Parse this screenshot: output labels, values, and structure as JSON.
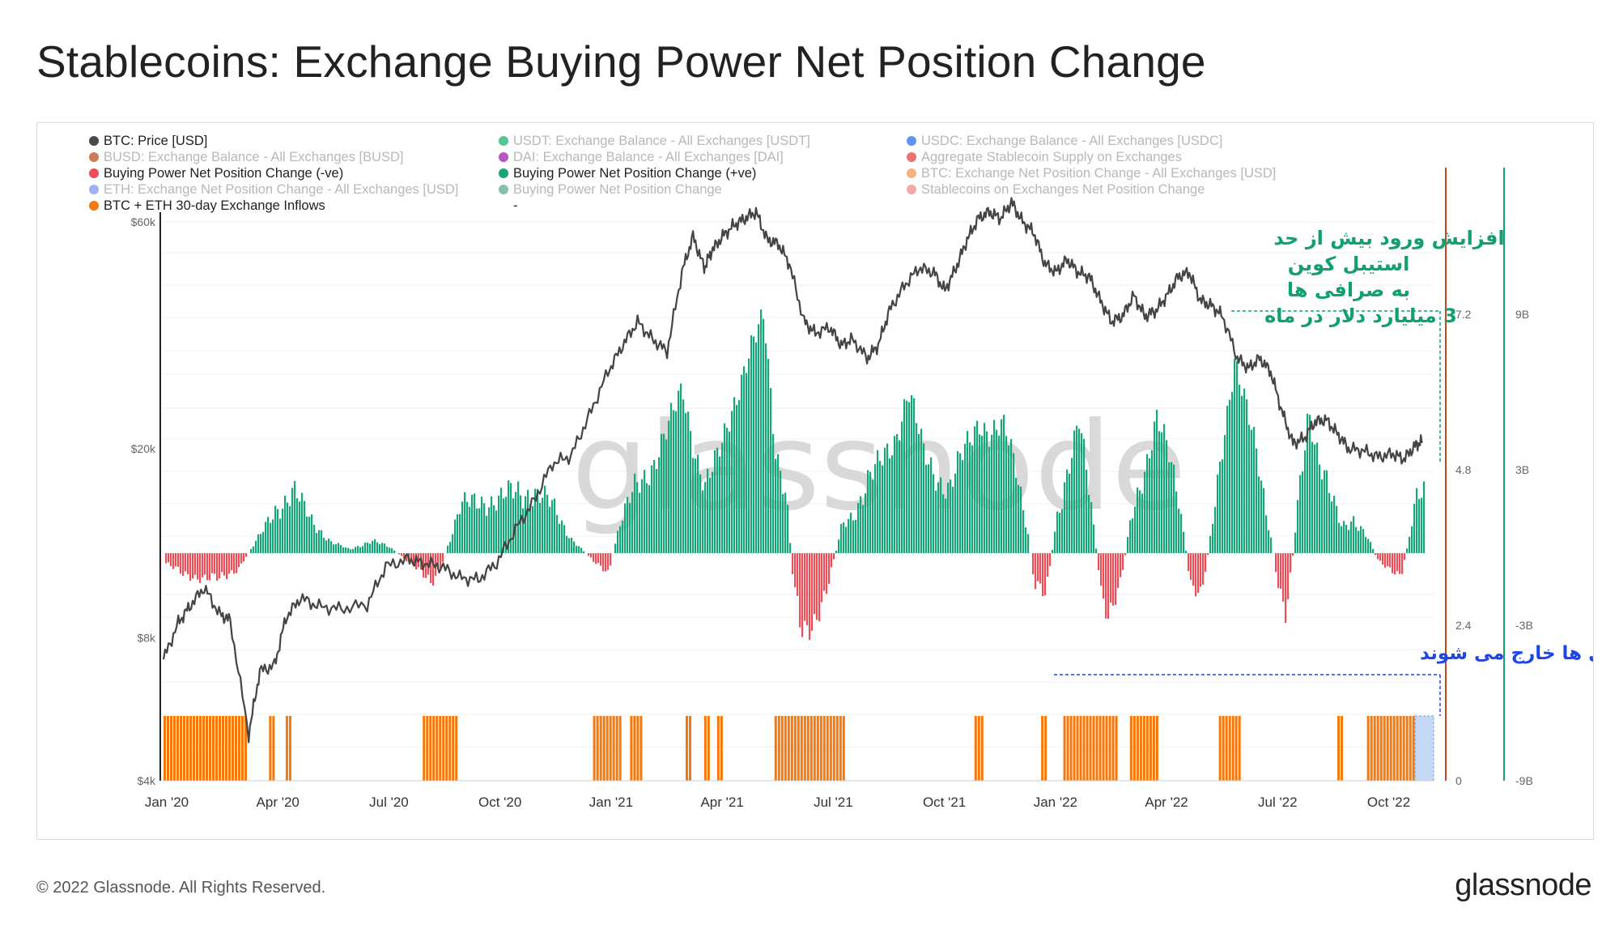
{
  "title": "Stablecoins: Exchange Buying Power Net Position Change",
  "footer": {
    "copyright": "© 2022 Glassnode. All Rights Reserved.",
    "brand": "glassnode"
  },
  "watermark": "glassnode",
  "colors": {
    "price_line": "#444444",
    "buying_negative": "#ec4d56",
    "buying_positive": "#16a679",
    "inflows": "#f4780d",
    "right_axis_red": "#c9431c",
    "right_axis_green": "#12a070",
    "annotation_green": "#12a070",
    "annotation_blue": "#1f45e6"
  },
  "legend": [
    {
      "label": "BTC: Price [USD]",
      "color": "#4a4a4a",
      "active": true
    },
    {
      "label": "USDT: Exchange Balance - All Exchanges [USDT]",
      "color": "#1fb36b",
      "active": false
    },
    {
      "label": "USDC: Exchange Balance - All Exchanges [USDC]",
      "color": "#2e6ef0",
      "active": false
    },
    {
      "label": "BUSD: Exchange Balance - All Exchanges [BUSD]",
      "color": "#b8501e",
      "active": false
    },
    {
      "label": "DAI: Exchange Balance - All Exchanges [DAI]",
      "color": "#a31ab8",
      "active": false
    },
    {
      "label": "Aggregate Stablecoin Supply on Exchanges",
      "color": "#e84040",
      "active": false
    },
    {
      "label": "Buying Power Net Position Change (-ve)",
      "color": "#ec4d56",
      "active": true
    },
    {
      "label": "Buying Power Net Position Change (+ve)",
      "color": "#16a679",
      "active": true
    },
    {
      "label": "BTC: Exchange Net Position Change - All Exchanges [USD]",
      "color": "#f39a5a",
      "active": false
    },
    {
      "label": "ETH: Exchange Net Position Change - All Exchanges [USD]",
      "color": "#7f97ee",
      "active": false
    },
    {
      "label": "Buying Power Net Position Change",
      "color": "#5fa98a",
      "active": false
    },
    {
      "label": "Stablecoins on Exchanges Net Position Change",
      "color": "#f08a8a",
      "active": false
    },
    {
      "label": "BTC + ETH 30-day Exchange Inflows",
      "color": "#f4780d",
      "active": true
    },
    {
      "label": "-",
      "color": null,
      "active": true
    }
  ],
  "chart_data": {
    "type": "line+bar",
    "title": "Stablecoins: Exchange Buying Power Net Position Change",
    "x_ticks": [
      "Jan '20",
      "Apr '20",
      "Jul '20",
      "Oct '20",
      "Jan '21",
      "Apr '21",
      "Jul '21",
      "Oct '21",
      "Jan '22",
      "Apr '22",
      "Jul '22",
      "Oct '22"
    ],
    "left_axis": {
      "ticks": [
        "$60k",
        "$20k",
        "$8k",
        "$4k"
      ],
      "values": [
        60000,
        20000,
        8000,
        4000
      ],
      "scale": "log"
    },
    "right_axis_1": {
      "ticks": [
        "7.2",
        "4.8",
        "2.4",
        "0"
      ],
      "values": [
        7.2,
        4.8,
        2.4,
        0
      ]
    },
    "right_axis_2": {
      "ticks": [
        "9B",
        "3B",
        "-3B",
        "-9B"
      ],
      "values": [
        9,
        3,
        -3,
        -9
      ]
    },
    "series": [
      {
        "name": "BTC: Price [USD]",
        "type": "line",
        "points": [
          [
            0,
            7200
          ],
          [
            0.4,
            8600
          ],
          [
            0.7,
            9300
          ],
          [
            1.1,
            10200
          ],
          [
            1.5,
            9000
          ],
          [
            1.8,
            8700
          ],
          [
            2.3,
            5000
          ],
          [
            2.6,
            6800
          ],
          [
            3.0,
            7000
          ],
          [
            3.3,
            8800
          ],
          [
            3.7,
            9700
          ],
          [
            4.2,
            9300
          ],
          [
            4.8,
            9200
          ],
          [
            5.5,
            9400
          ],
          [
            6.0,
            11300
          ],
          [
            6.6,
            11700
          ],
          [
            7.0,
            11500
          ],
          [
            7.5,
            11300
          ],
          [
            8.0,
            10700
          ],
          [
            8.5,
            10600
          ],
          [
            9.0,
            11500
          ],
          [
            9.5,
            13500
          ],
          [
            10.0,
            15500
          ],
          [
            10.5,
            18600
          ],
          [
            11.0,
            19300
          ],
          [
            11.5,
            23500
          ],
          [
            12.0,
            29000
          ],
          [
            12.4,
            33000
          ],
          [
            12.8,
            37000
          ],
          [
            13.2,
            34000
          ],
          [
            13.6,
            32000
          ],
          [
            14.0,
            47000
          ],
          [
            14.3,
            56000
          ],
          [
            14.6,
            48000
          ],
          [
            14.8,
            52000
          ],
          [
            15.1,
            56000
          ],
          [
            15.4,
            59000
          ],
          [
            15.7,
            61000
          ],
          [
            16.0,
            63000
          ],
          [
            16.3,
            55000
          ],
          [
            16.6,
            54000
          ],
          [
            16.9,
            49000
          ],
          [
            17.3,
            37000
          ],
          [
            17.6,
            35000
          ],
          [
            18.0,
            36000
          ],
          [
            18.3,
            33000
          ],
          [
            18.6,
            34000
          ],
          [
            19.0,
            31000
          ],
          [
            19.3,
            33000
          ],
          [
            19.6,
            39000
          ],
          [
            20.0,
            44000
          ],
          [
            20.4,
            48000
          ],
          [
            20.8,
            47000
          ],
          [
            21.1,
            43000
          ],
          [
            21.4,
            48000
          ],
          [
            21.7,
            55000
          ],
          [
            22.0,
            61000
          ],
          [
            22.3,
            63000
          ],
          [
            22.6,
            61000
          ],
          [
            22.9,
            66000
          ],
          [
            23.2,
            60000
          ],
          [
            23.5,
            57000
          ],
          [
            23.8,
            49000
          ],
          [
            24.1,
            47000
          ],
          [
            24.4,
            50000
          ],
          [
            24.7,
            47000
          ],
          [
            25.0,
            46000
          ],
          [
            25.3,
            41000
          ],
          [
            25.6,
            37000
          ],
          [
            25.9,
            38000
          ],
          [
            26.2,
            42000
          ],
          [
            26.5,
            38000
          ],
          [
            26.8,
            39000
          ],
          [
            27.1,
            42000
          ],
          [
            27.4,
            46000
          ],
          [
            27.7,
            47000
          ],
          [
            28.0,
            41000
          ],
          [
            28.3,
            40000
          ],
          [
            28.6,
            38000
          ],
          [
            29.0,
            31000
          ],
          [
            29.3,
            29500
          ],
          [
            29.6,
            31000
          ],
          [
            29.9,
            29000
          ],
          [
            30.2,
            24000
          ],
          [
            30.5,
            20500
          ],
          [
            30.8,
            21000
          ],
          [
            31.1,
            22800
          ],
          [
            31.4,
            23000
          ],
          [
            31.7,
            21500
          ],
          [
            32.0,
            20000
          ],
          [
            32.4,
            19800
          ],
          [
            32.8,
            19200
          ],
          [
            33.2,
            19500
          ],
          [
            33.5,
            19000
          ],
          [
            33.8,
            20300
          ],
          [
            34.0,
            20700
          ]
        ]
      },
      {
        "name": "Buying Power Net Position Change (+ve / -ve)",
        "type": "bar",
        "unit": "B USD",
        "segments": [
          [
            0.0,
            -0.5
          ],
          [
            0.5,
            -1.2
          ],
          [
            1.0,
            -1.3
          ],
          [
            1.5,
            -1.5
          ],
          [
            2.0,
            -0.8
          ],
          [
            2.6,
            1.0
          ],
          [
            3.0,
            2.5
          ],
          [
            3.5,
            3.3
          ],
          [
            4.0,
            1.8
          ],
          [
            4.5,
            0.6
          ],
          [
            5.0,
            0.2
          ],
          [
            5.6,
            0.7
          ],
          [
            6.1,
            0.3
          ],
          [
            6.7,
            -0.6
          ],
          [
            7.2,
            -1.8
          ],
          [
            7.5,
            -0.5
          ],
          [
            8.0,
            2.5
          ],
          [
            8.5,
            3.0
          ],
          [
            9.0,
            2.8
          ],
          [
            9.5,
            3.5
          ],
          [
            10.0,
            3.3
          ],
          [
            10.5,
            2.6
          ],
          [
            11.0,
            0.8
          ],
          [
            11.6,
            -0.5
          ],
          [
            12.0,
            -1.0
          ],
          [
            12.3,
            1.6
          ],
          [
            12.7,
            3.5
          ],
          [
            13.2,
            5.0
          ],
          [
            13.6,
            6.8
          ],
          [
            14.0,
            9.2
          ],
          [
            14.3,
            6.0
          ],
          [
            14.6,
            3.5
          ],
          [
            14.9,
            5.0
          ],
          [
            15.3,
            8.0
          ],
          [
            15.7,
            10.2
          ],
          [
            16.0,
            12.0
          ],
          [
            16.2,
            13.3
          ],
          [
            16.5,
            6.0
          ],
          [
            16.8,
            3.0
          ],
          [
            17.0,
            -2.0
          ],
          [
            17.2,
            -4.5
          ],
          [
            17.5,
            -3.8
          ],
          [
            17.9,
            -2.0
          ],
          [
            18.3,
            1.5
          ],
          [
            18.6,
            2.2
          ],
          [
            19.0,
            4.0
          ],
          [
            19.3,
            4.8
          ],
          [
            19.7,
            6.2
          ],
          [
            20.1,
            9.0
          ],
          [
            20.5,
            5.5
          ],
          [
            20.9,
            4.2
          ],
          [
            21.2,
            3.5
          ],
          [
            21.6,
            5.6
          ],
          [
            22.0,
            7.5
          ],
          [
            22.3,
            6.5
          ],
          [
            22.7,
            6.8
          ],
          [
            23.0,
            5.0
          ],
          [
            23.3,
            1.5
          ],
          [
            23.5,
            -1.8
          ],
          [
            23.8,
            -2.5
          ],
          [
            24.1,
            2.0
          ],
          [
            24.4,
            4.8
          ],
          [
            24.7,
            7.2
          ],
          [
            25.0,
            3.0
          ],
          [
            25.3,
            -2.0
          ],
          [
            25.5,
            -3.3
          ],
          [
            25.8,
            -2.0
          ],
          [
            26.1,
            1.8
          ],
          [
            26.5,
            5.0
          ],
          [
            26.8,
            7.5
          ],
          [
            27.1,
            5.5
          ],
          [
            27.4,
            3.0
          ],
          [
            27.7,
            -1.5
          ],
          [
            28.0,
            -2.5
          ],
          [
            28.3,
            1.5
          ],
          [
            28.6,
            6.5
          ],
          [
            28.9,
            10.8
          ],
          [
            29.2,
            8.0
          ],
          [
            29.5,
            5.5
          ],
          [
            29.8,
            2.0
          ],
          [
            30.1,
            -2.0
          ],
          [
            30.3,
            -3.8
          ],
          [
            30.6,
            2.5
          ],
          [
            30.9,
            8.2
          ],
          [
            31.2,
            5.0
          ],
          [
            31.5,
            3.0
          ],
          [
            31.8,
            1.5
          ],
          [
            32.1,
            2.0
          ],
          [
            32.5,
            0.8
          ],
          [
            32.8,
            -0.5
          ],
          [
            33.1,
            -0.8
          ],
          [
            33.4,
            -1.2
          ],
          [
            33.6,
            0.6
          ],
          [
            33.8,
            2.8
          ],
          [
            34.0,
            3.5
          ]
        ]
      },
      {
        "name": "BTC + ETH 30-day Exchange Inflows",
        "type": "bar-band",
        "spans": [
          [
            0.0,
            2.2
          ],
          [
            2.85,
            2.95
          ],
          [
            3.3,
            3.4
          ],
          [
            7.0,
            7.9
          ],
          [
            11.6,
            12.3
          ],
          [
            12.6,
            12.9
          ],
          [
            14.1,
            14.2
          ],
          [
            14.6,
            14.7
          ],
          [
            14.95,
            15.05
          ],
          [
            16.5,
            18.4
          ],
          [
            21.9,
            22.1
          ],
          [
            23.7,
            23.8
          ],
          [
            24.3,
            25.7
          ],
          [
            26.1,
            26.8
          ],
          [
            28.5,
            29.1
          ],
          [
            31.7,
            31.8
          ],
          [
            32.5,
            33.8
          ]
        ],
        "highlight_span": [
          33.8,
          34.3
        ]
      }
    ],
    "annotations": [
      {
        "lines": [
          "افزایش ورود بیش از حد",
          "استیبل کوین",
          "به صرافی ها",
          "3 میلیارد دلار در ماه"
        ],
        "color": "green"
      },
      {
        "lines": [
          "بیتکوین و اتریوم  به طور خالص از صرافی ها خارج می شوند"
        ],
        "color": "blue"
      }
    ]
  }
}
